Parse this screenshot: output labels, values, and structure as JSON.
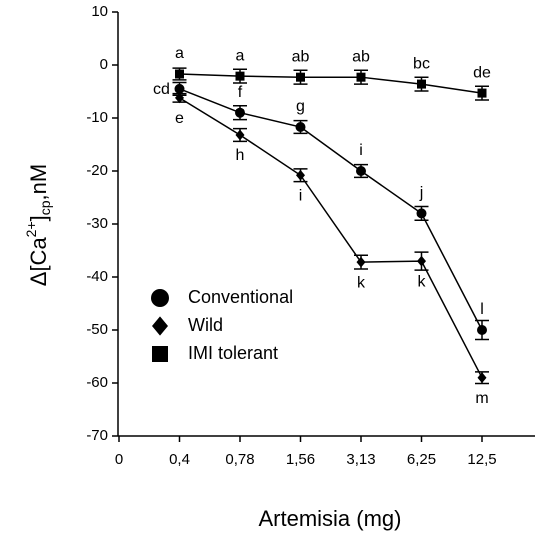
{
  "chart_data": {
    "type": "line",
    "xlabel": "Artemisia (mg)",
    "ylabel": {
      "base": "Δ[Ca",
      "sup": "2+",
      "close": "]",
      "sub": "cp",
      "unit": ",nM"
    },
    "categories": [
      "0",
      "0,4",
      "0,78",
      "1,56",
      "3,13",
      "6,25",
      "12,5"
    ],
    "ylim": [
      -70,
      10
    ],
    "yticks": [
      -70,
      -60,
      -50,
      -40,
      -30,
      -20,
      -10,
      0,
      10
    ],
    "grid": false,
    "legend": "lower left",
    "series": [
      {
        "name": "Conventional",
        "marker": "circle",
        "color": "#000000",
        "values": [
          null,
          -4.5,
          -9,
          -11.7,
          -20,
          -28,
          -50
        ],
        "errors": [
          null,
          1.2,
          1.3,
          1.2,
          1.2,
          1.3,
          1.8
        ],
        "letters": [
          null,
          "cd",
          "f",
          "g",
          "i",
          "j",
          "l"
        ],
        "letter_side": "above"
      },
      {
        "name": "Wild",
        "marker": "diamond",
        "color": "#000000",
        "values": [
          null,
          -6.2,
          -13.2,
          -20.8,
          -37.2,
          -37,
          -59
        ],
        "errors": [
          null,
          0.8,
          1.2,
          1.2,
          1.3,
          1.7,
          1.1
        ],
        "letters": [
          null,
          "e",
          "h",
          "i",
          "k",
          "k",
          "m"
        ],
        "letter_side": "below"
      },
      {
        "name": "IMI tolerant",
        "marker": "square",
        "color": "#000000",
        "values": [
          null,
          -1.7,
          -2.1,
          -2.3,
          -2.3,
          -3.6,
          -5.3
        ],
        "errors": [
          null,
          1.1,
          1.3,
          1.3,
          1.3,
          1.3,
          1.3
        ],
        "letters": [
          null,
          "a",
          "a",
          "ab",
          "ab",
          "bc",
          "de"
        ],
        "letter_side": "above"
      }
    ]
  }
}
